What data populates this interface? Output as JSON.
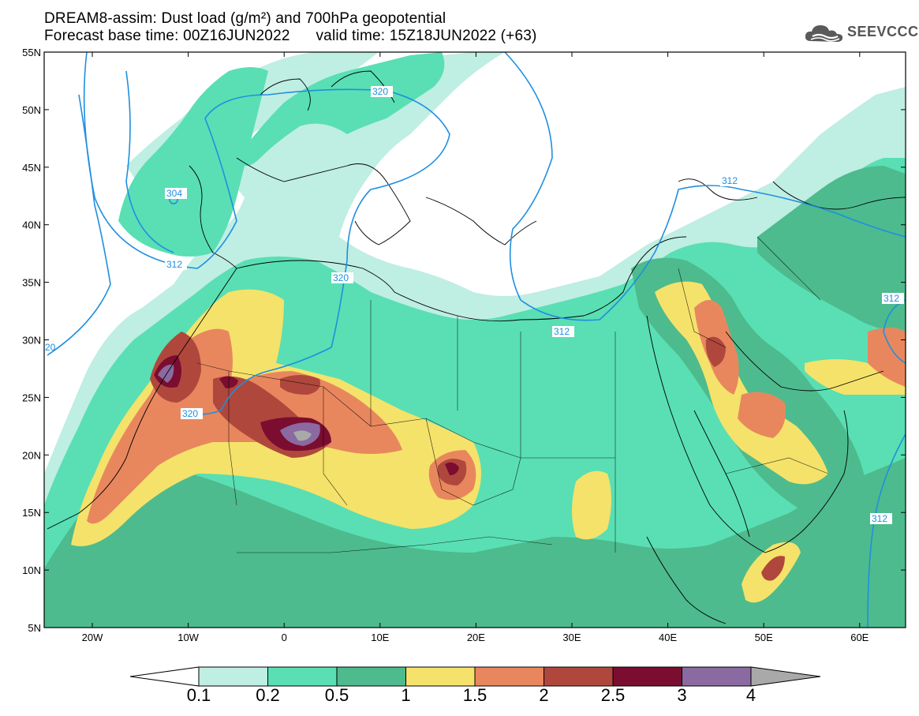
{
  "header": {
    "line1": "DREAM8-assim: Dust load (g/m²) and 700hPa geopotential",
    "line2_left": "Forecast base time: 00Z16JUN2022",
    "line2_right": "valid time: 15Z18JUN2022 (+63)",
    "logo_text": "SEEVCCC",
    "logo_icon": "cloud-icon"
  },
  "map": {
    "lat_labels": [
      "55N",
      "50N",
      "45N",
      "40N",
      "35N",
      "30N",
      "25N",
      "20N",
      "15N",
      "10N",
      "5N"
    ],
    "lon_labels": [
      "20W",
      "10W",
      "0",
      "10E",
      "20E",
      "30E",
      "40E",
      "50E",
      "60E"
    ],
    "contour_labels": [
      "320",
      "304",
      "312",
      "320",
      "320",
      "312",
      "312",
      "312",
      "312",
      "20"
    ]
  },
  "colorbar": {
    "labels": [
      "0.1",
      "0.2",
      "0.5",
      "1",
      "1.5",
      "2",
      "2.5",
      "3",
      "4"
    ],
    "colors": [
      "#ffffff",
      "#bfeee3",
      "#59dfb3",
      "#4dbb8d",
      "#f5e26a",
      "#e8875e",
      "#b0473c",
      "#7a0d30",
      "#8a6aa0",
      "#a9a9a9"
    ]
  },
  "palette": {
    "c01": "#bfeee3",
    "c02": "#59dfb3",
    "c05": "#4dbb8d",
    "c1": "#f5e26a",
    "c15": "#e8875e",
    "c2": "#b0473c",
    "c25": "#7a0d30",
    "c3": "#8a6aa0",
    "contour": "#1f8fe0"
  }
}
